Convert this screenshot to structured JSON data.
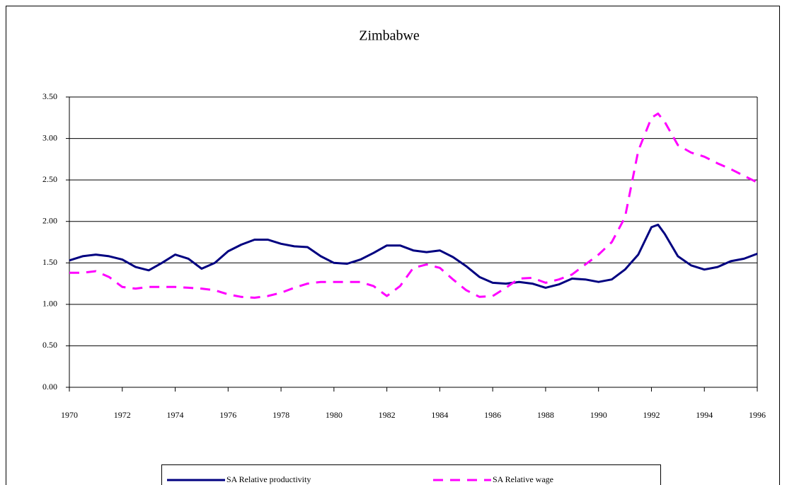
{
  "chart_data": {
    "type": "line",
    "title": "Zimbabwe",
    "x": [
      1970,
      1970.5,
      1971,
      1971.5,
      1972,
      1972.5,
      1973,
      1973.5,
      1974,
      1974.5,
      1975,
      1975.5,
      1976,
      1976.5,
      1977,
      1977.5,
      1978,
      1978.5,
      1979,
      1979.5,
      1980,
      1980.5,
      1981,
      1981.5,
      1982,
      1982.5,
      1983,
      1983.5,
      1984,
      1984.5,
      1985,
      1985.5,
      1986,
      1986.5,
      1987,
      1987.5,
      1988,
      1988.5,
      1989,
      1989.5,
      1990,
      1990.5,
      1991,
      1991.5,
      1992,
      1992.25,
      1992.5,
      1993,
      1993.5,
      1994,
      1994.5,
      1995,
      1995.5,
      1996
    ],
    "series": [
      {
        "name": "SA Relative productivity",
        "color": "#000080",
        "dash": false,
        "values": [
          1.53,
          1.58,
          1.6,
          1.58,
          1.54,
          1.45,
          1.41,
          1.5,
          1.6,
          1.55,
          1.43,
          1.5,
          1.64,
          1.72,
          1.78,
          1.78,
          1.73,
          1.7,
          1.69,
          1.58,
          1.5,
          1.49,
          1.54,
          1.62,
          1.71,
          1.71,
          1.65,
          1.63,
          1.65,
          1.57,
          1.46,
          1.33,
          1.26,
          1.25,
          1.27,
          1.25,
          1.2,
          1.24,
          1.31,
          1.3,
          1.27,
          1.3,
          1.42,
          1.6,
          1.93,
          1.96,
          1.85,
          1.58,
          1.47,
          1.42,
          1.45,
          1.52,
          1.55,
          1.61
        ]
      },
      {
        "name": "SA Relative wage",
        "color": "#ff00ff",
        "dash": true,
        "values": [
          1.38,
          1.38,
          1.4,
          1.33,
          1.21,
          1.19,
          1.21,
          1.21,
          1.21,
          1.2,
          1.19,
          1.17,
          1.12,
          1.09,
          1.08,
          1.1,
          1.14,
          1.2,
          1.25,
          1.27,
          1.27,
          1.27,
          1.27,
          1.22,
          1.1,
          1.22,
          1.44,
          1.48,
          1.44,
          1.3,
          1.17,
          1.09,
          1.1,
          1.2,
          1.31,
          1.32,
          1.26,
          1.3,
          1.36,
          1.48,
          1.6,
          1.75,
          2.05,
          2.85,
          3.25,
          3.3,
          3.2,
          2.92,
          2.83,
          2.78,
          2.7,
          2.63,
          2.55,
          2.47
        ]
      }
    ],
    "xlim": [
      1970,
      1996
    ],
    "xticks": [
      1970,
      1972,
      1974,
      1976,
      1978,
      1980,
      1982,
      1984,
      1986,
      1988,
      1990,
      1992,
      1994,
      1996
    ],
    "ylim": [
      0,
      3.5
    ],
    "yticks": [
      {
        "value": 0,
        "label": "0.00"
      },
      {
        "value": 0.5,
        "label": "0.50"
      },
      {
        "value": 1,
        "label": "1.00"
      },
      {
        "value": 1.5,
        "label": "1.50"
      },
      {
        "value": 2,
        "label": "2.00"
      },
      {
        "value": 2.5,
        "label": "2.50"
      },
      {
        "value": 3,
        "label": "3.00"
      },
      {
        "value": 3.5,
        "label": "3.50"
      }
    ],
    "grid": true,
    "legend": "bottom"
  }
}
